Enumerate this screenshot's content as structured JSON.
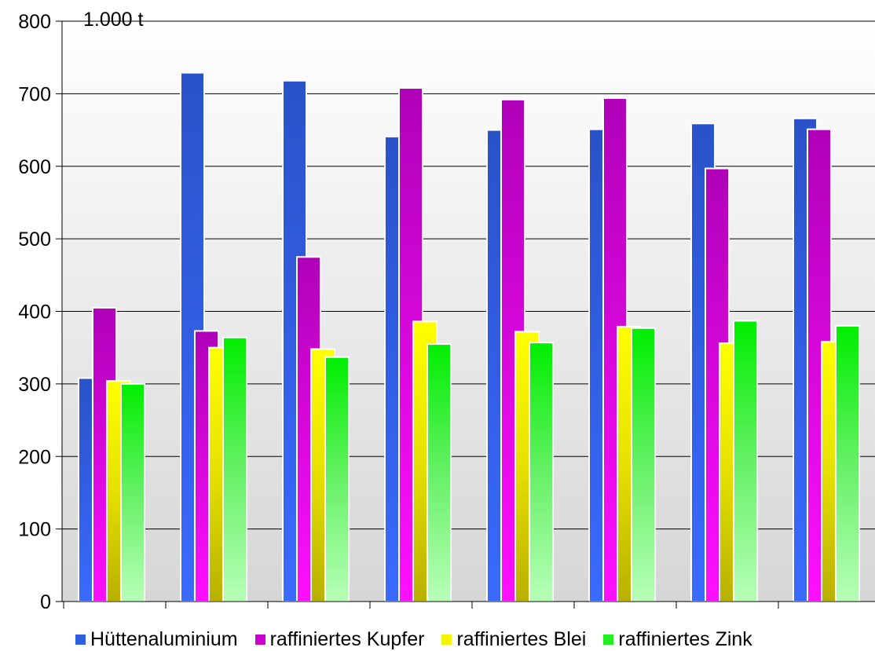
{
  "chart_data": {
    "type": "bar",
    "title": "",
    "xlabel": "",
    "ylabel": "1.000 t",
    "ylim": [
      0,
      800
    ],
    "yticks": [
      0,
      100,
      200,
      300,
      400,
      500,
      600,
      700,
      800
    ],
    "categories": [
      "",
      "",
      "",
      "",
      "",
      "",
      "",
      ""
    ],
    "grid": true,
    "legend_placement": "bottom",
    "series": [
      {
        "name": "Hüttenaluminium",
        "color": "#2f5fe0",
        "values": [
          308,
          729,
          718,
          641,
          650,
          651,
          659,
          666
        ]
      },
      {
        "name": "raffiniertes Kupfer",
        "color": "#cc00cc",
        "values": [
          405,
          373,
          475,
          708,
          692,
          694,
          597,
          651
        ]
      },
      {
        "name": "raffiniertes Blei",
        "color": "#f4f400",
        "values": [
          304,
          350,
          348,
          386,
          372,
          379,
          356,
          358
        ]
      },
      {
        "name": "raffiniertes Zink",
        "color": "#22ee22",
        "values": [
          300,
          364,
          337,
          355,
          357,
          377,
          387,
          380
        ]
      }
    ]
  }
}
